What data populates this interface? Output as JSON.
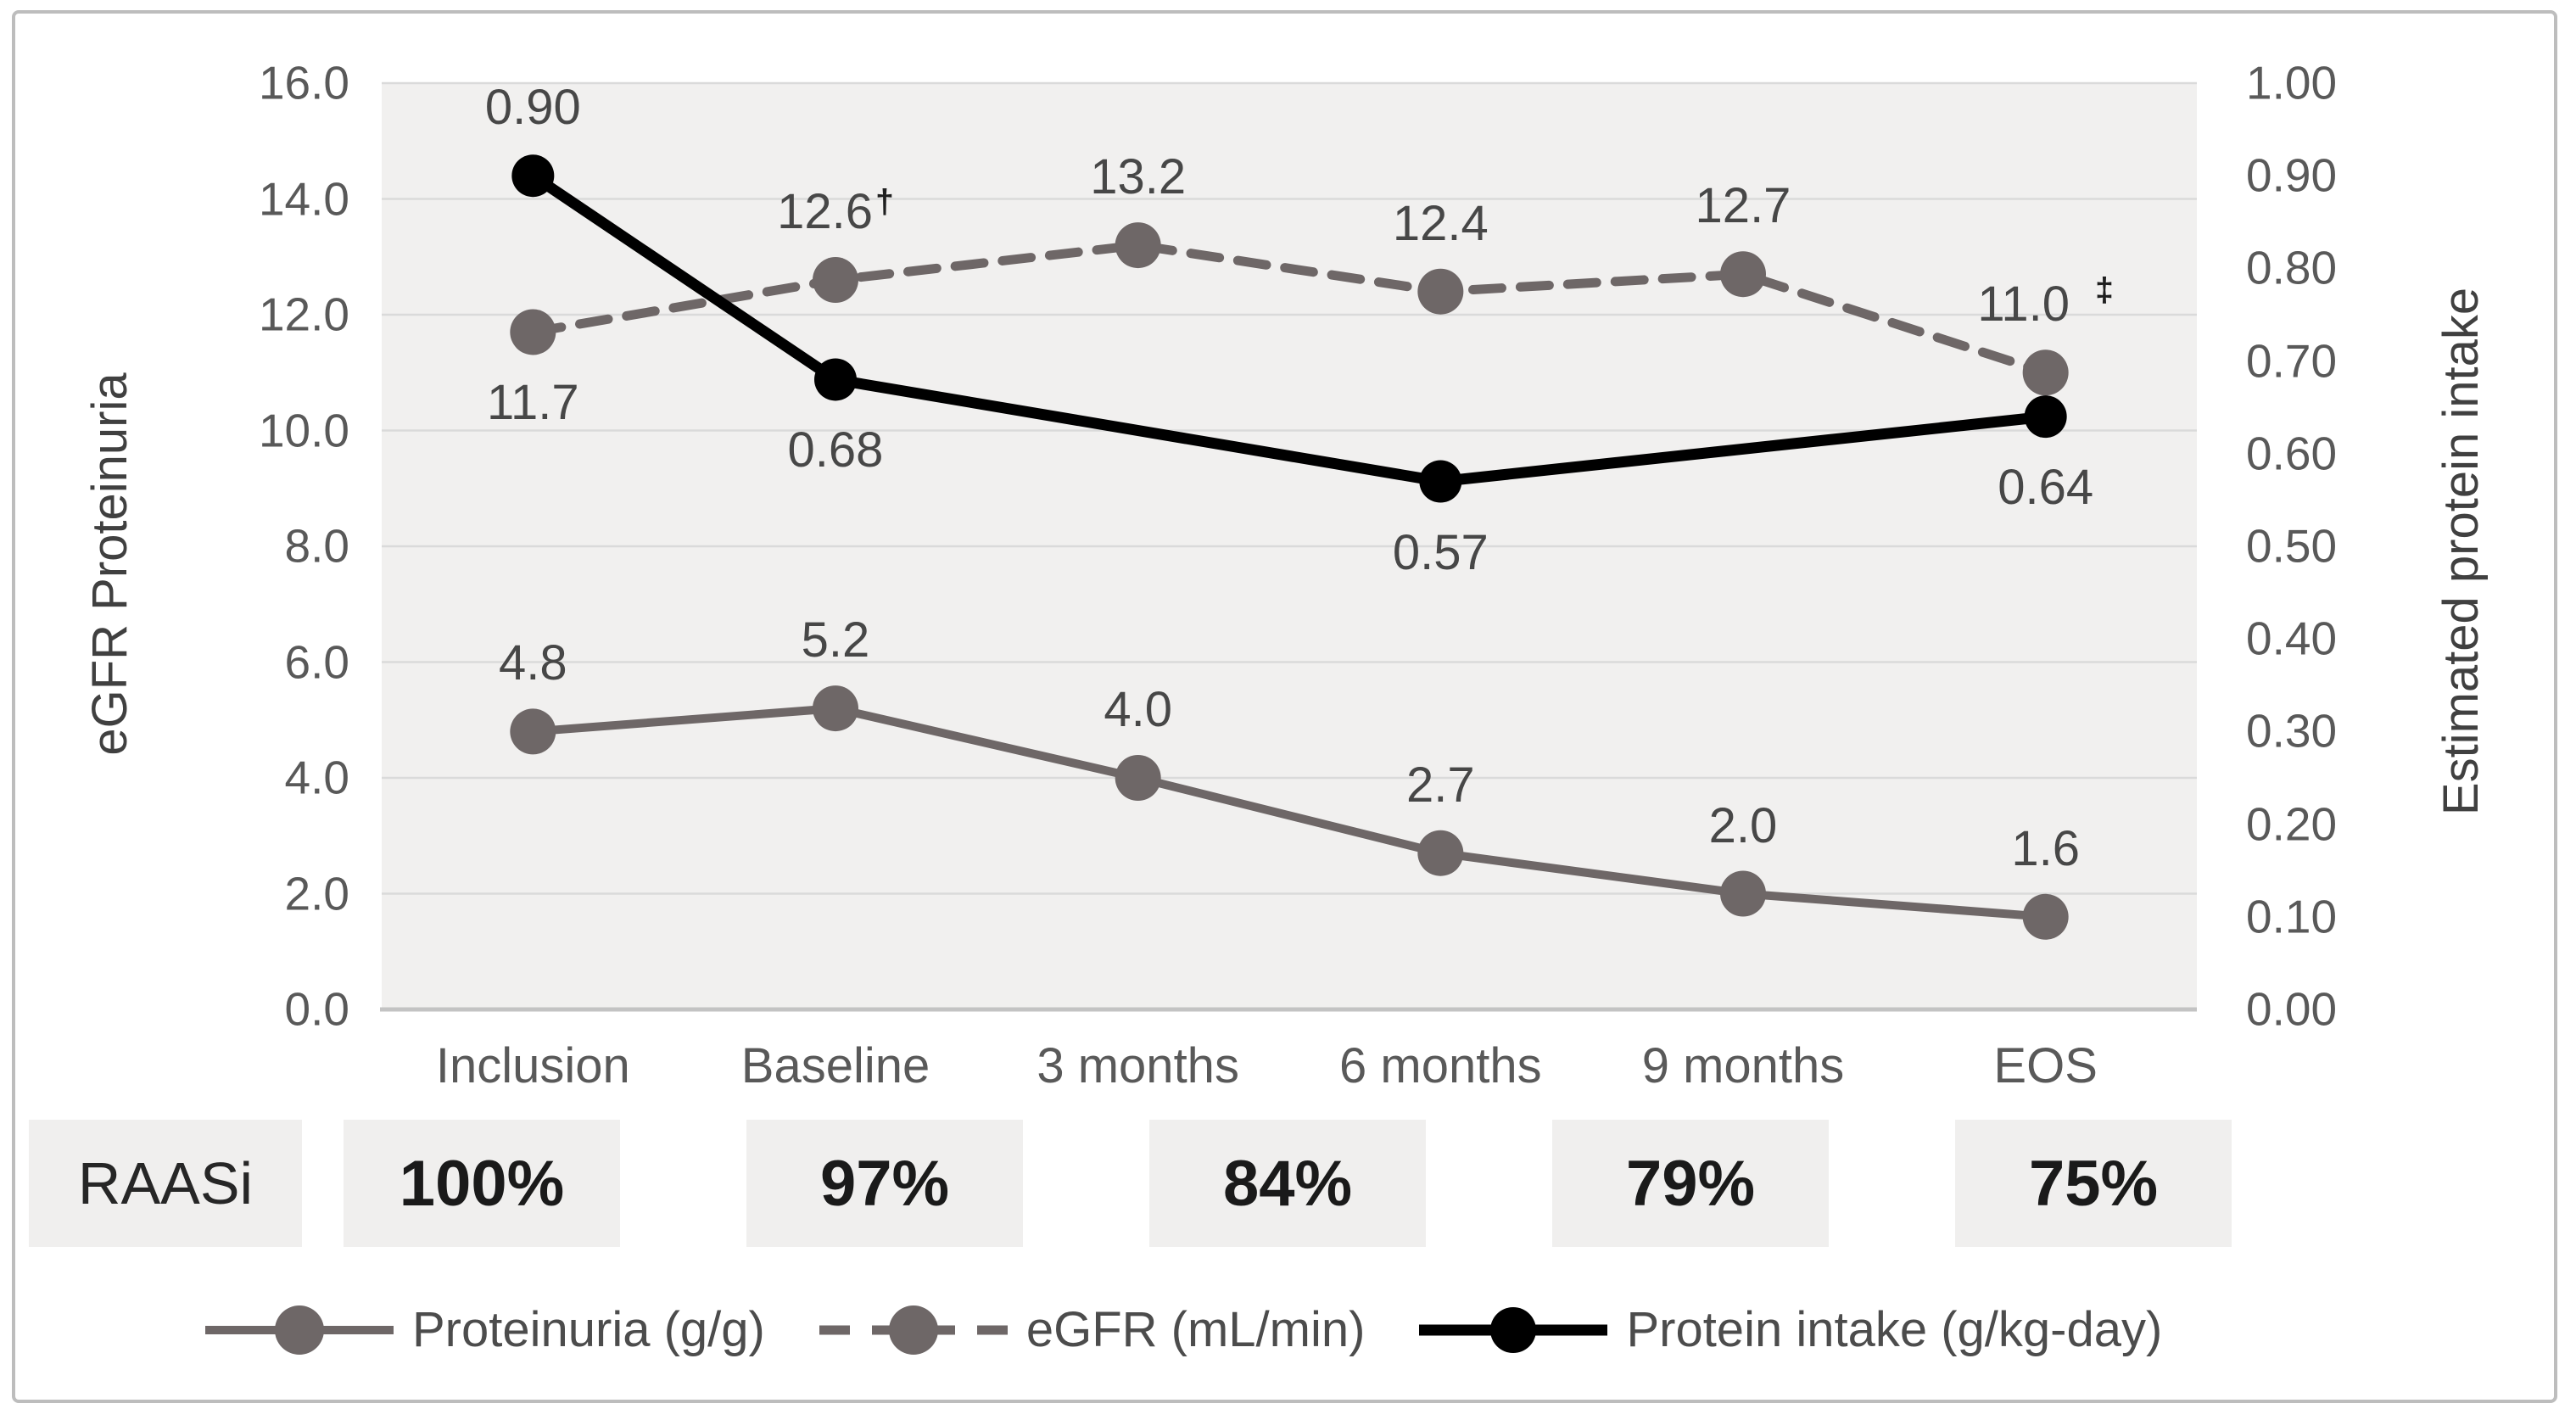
{
  "chart_data": {
    "type": "line",
    "title": "",
    "categories": [
      "Inclusion",
      "Baseline",
      "3 months",
      "6 months",
      "9 months",
      "EOS"
    ],
    "left_axis": {
      "label": "eGFR Proteinuria",
      "min": 0,
      "max": 16,
      "ticks": [
        "16.0",
        "14.0",
        "12.0",
        "10.0",
        "8.0",
        "6.0",
        "4.0",
        "2.0",
        "0.0"
      ]
    },
    "right_axis": {
      "label": "Estimated protein intake",
      "min": 0,
      "max": 1,
      "ticks": [
        "1.00",
        "0.90",
        "0.80",
        "0.70",
        "0.60",
        "0.50",
        "0.40",
        "0.30",
        "0.20",
        "0.10",
        "0.00"
      ]
    },
    "grid": true,
    "plot_bg": "#f1f0ef",
    "gridline_color": "#dadada",
    "axisline_color": "#c3c3c3",
    "series": [
      {
        "name": "Proteinuria (g/g)",
        "axis": "left",
        "color": "#6e6767",
        "dash": "",
        "line_width": 10,
        "marker_r": 27,
        "x": [
          0,
          1,
          2,
          3,
          4,
          5
        ],
        "values": [
          4.8,
          5.2,
          4.0,
          2.7,
          2.0,
          1.6
        ],
        "labels": [
          "4.8",
          "5.2",
          "4.0",
          "2.7",
          "2.0",
          "1.6"
        ],
        "sups": [
          "",
          "",
          "",
          "",
          "",
          ""
        ],
        "label_pos": [
          "above",
          "above",
          "above",
          "above",
          "above",
          "above"
        ]
      },
      {
        "name": "eGFR (mL/min)",
        "axis": "left",
        "color": "#6e6767",
        "dash": "34 22",
        "line_width": 11,
        "marker_r": 27,
        "x": [
          0,
          1,
          2,
          3,
          4,
          5
        ],
        "values": [
          11.7,
          12.6,
          13.2,
          12.4,
          12.7,
          11.0
        ],
        "labels": [
          "11.7",
          "12.6",
          "13.2",
          "12.4",
          "12.7",
          "11.0"
        ],
        "sups": [
          "",
          "†",
          "",
          "",
          "",
          "‡"
        ],
        "label_pos": [
          "below",
          "above",
          "above",
          "above",
          "above",
          "above"
        ]
      },
      {
        "name": "Protein intake (g/kg-day)",
        "axis": "right",
        "color": "#000000",
        "dash": "",
        "line_width": 13,
        "marker_r": 25,
        "x": [
          0,
          1,
          3,
          5
        ],
        "values": [
          0.9,
          0.68,
          0.57,
          0.64
        ],
        "labels": [
          "0.90",
          "0.68",
          "0.57",
          "0.64"
        ],
        "sups": [
          "",
          "",
          "",
          ""
        ],
        "label_pos": [
          "above",
          "below",
          "below",
          "below"
        ]
      }
    ],
    "raasi_row": {
      "label": "RAASi",
      "values": [
        "100%",
        "97%",
        "84%",
        "79%",
        "75%"
      ]
    },
    "legend_position": "bottom"
  }
}
